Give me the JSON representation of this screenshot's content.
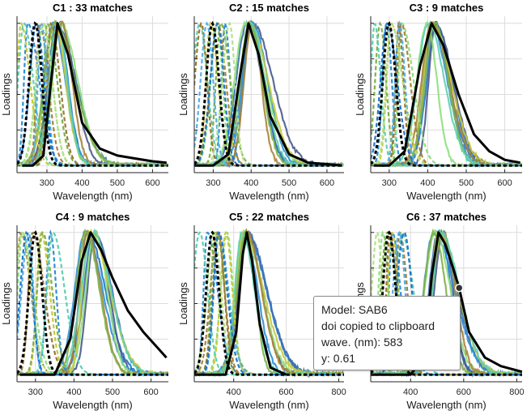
{
  "chart_data": [
    {
      "type": "line",
      "title": "C1 : 33 matches",
      "xlabel": "Wavelength (nm)",
      "ylabel": "Loadings",
      "xlim": [
        215,
        645
      ],
      "xticks": [
        300,
        400,
        500,
        600
      ],
      "ylim": [
        -0.05,
        1.05
      ],
      "grid": true,
      "peak_nm": 330,
      "series": [
        {
          "name": "",
          "x": [
            230,
            260,
            290,
            310,
            330,
            360,
            400,
            450,
            500,
            550,
            600,
            640
          ],
          "y": [
            0.0,
            0.0,
            0.07,
            0.55,
            1.0,
            0.78,
            0.3,
            0.12,
            0.07,
            0.05,
            0.03,
            0.02
          ]
        }
      ]
    },
    {
      "type": "line",
      "title": "C2 : 15 matches",
      "xlabel": "Wavelength (nm)",
      "ylabel": "Loadings",
      "xlim": [
        250,
        645
      ],
      "xticks": [
        300,
        400,
        500,
        600
      ],
      "ylim": [
        -0.05,
        1.05
      ],
      "grid": true,
      "peak_nm": 393,
      "series": [
        {
          "name": "",
          "x": [
            250,
            300,
            340,
            370,
            393,
            420,
            450,
            500,
            550,
            600,
            640
          ],
          "y": [
            0.0,
            0.0,
            0.08,
            0.62,
            1.0,
            0.78,
            0.35,
            0.08,
            0.02,
            0.01,
            0.0
          ]
        }
      ]
    },
    {
      "type": "line",
      "title": "C3 : 9 matches",
      "xlabel": "Wavelength (nm)",
      "ylabel": "Loadings",
      "xlim": [
        252,
        645
      ],
      "xticks": [
        300,
        400,
        500,
        600
      ],
      "ylim": [
        -0.05,
        1.05
      ],
      "grid": true,
      "peak_nm": 410,
      "series": [
        {
          "name": "",
          "x": [
            260,
            300,
            340,
            380,
            410,
            440,
            480,
            520,
            560,
            600,
            640
          ],
          "y": [
            0.0,
            0.0,
            0.1,
            0.7,
            1.0,
            0.85,
            0.5,
            0.22,
            0.1,
            0.04,
            0.02
          ]
        }
      ]
    },
    {
      "type": "line",
      "title": "C4 : 9 matches",
      "xlabel": "Wavelength (nm)",
      "ylabel": "Loadings",
      "xlim": [
        252,
        645
      ],
      "xticks": [
        300,
        400,
        500,
        600
      ],
      "ylim": [
        -0.05,
        1.05
      ],
      "grid": true,
      "peak_nm": 443,
      "series": [
        {
          "name": "",
          "x": [
            260,
            350,
            390,
            420,
            443,
            470,
            500,
            540,
            580,
            620,
            640
          ],
          "y": [
            0.0,
            0.0,
            0.25,
            0.8,
            1.0,
            0.88,
            0.68,
            0.45,
            0.3,
            0.18,
            0.12
          ]
        }
      ]
    },
    {
      "type": "line",
      "title": "C5 : 22 matches",
      "xlabel": "Wavelength (nm)",
      "ylabel": "Loadings",
      "xlim": [
        250,
        820
      ],
      "xticks": [
        400,
        600,
        800
      ],
      "ylim": [
        -0.05,
        1.05
      ],
      "grid": true,
      "peak_nm": 450,
      "series": [
        {
          "name": "",
          "x": [
            250,
            370,
            410,
            435,
            450,
            470,
            500,
            540,
            600
          ],
          "y": [
            0.0,
            0.0,
            0.3,
            0.85,
            1.0,
            0.8,
            0.35,
            0.05,
            0.0
          ]
        }
      ]
    },
    {
      "type": "line",
      "title": "C6 : 37 matches",
      "xlabel": "Wavelength (nm)",
      "ylabel": "Loadings",
      "xlim": [
        250,
        820
      ],
      "xticks": [
        400,
        600,
        800
      ],
      "ylim": [
        -0.05,
        1.05
      ],
      "grid": true,
      "peak_nm": 505,
      "series": [
        {
          "name": "",
          "x": [
            250,
            400,
            450,
            480,
            505,
            530,
            560,
            583,
            620,
            680,
            740,
            800,
            820
          ],
          "y": [
            0.0,
            0.0,
            0.12,
            0.7,
            1.0,
            0.92,
            0.75,
            0.61,
            0.3,
            0.12,
            0.06,
            0.03,
            0.02
          ]
        }
      ]
    }
  ],
  "datatip": {
    "line1": "Model: SAB6",
    "line2": "doi copied to clipboard",
    "line3": "wave. (nm): 583",
    "line4": "y: 0.61",
    "x_value": 583,
    "y_value": 0.61
  },
  "colors": {
    "reference": "#000000",
    "grid": "#dcdcdc",
    "axis": "#262626",
    "palette": [
      "#1f77c8",
      "#3b6eb0",
      "#4a5a8c",
      "#2f8fd6",
      "#8fe07c",
      "#c8c93a",
      "#a8843a",
      "#7fb04a",
      "#5fd0b0",
      "#9a7a34",
      "#55b0e8",
      "#b8e08a"
    ]
  }
}
